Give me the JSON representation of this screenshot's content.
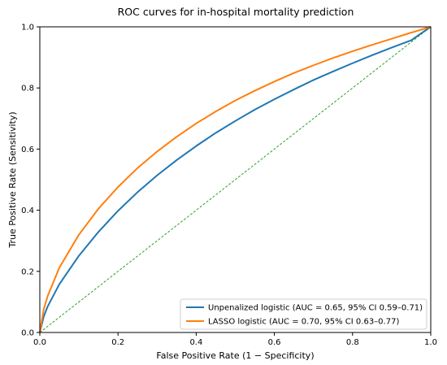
{
  "chart_data": {
    "type": "line",
    "title": "ROC curves for in-hospital mortality prediction",
    "xlabel": "False Positive Rate (1 − Specificity)",
    "ylabel": "True Positive Rate (Sensitivity)",
    "xlim": [
      0,
      1
    ],
    "ylim": [
      0,
      1
    ],
    "xticks": [
      "0.0",
      "0.2",
      "0.4",
      "0.6",
      "0.8",
      "1.0"
    ],
    "yticks": [
      "0.0",
      "0.2",
      "0.4",
      "0.6",
      "0.8",
      "1.0"
    ],
    "grid": false,
    "legend_position": "bottom-right",
    "series": [
      {
        "name": "Unpenalized logistic (AUC = 0.65, 95% CI 0.59–0.71)",
        "color": "#1f77b4",
        "style": "solid",
        "x": [
          0,
          0.01,
          0.02,
          0.05,
          0.1,
          0.15,
          0.2,
          0.25,
          0.3,
          0.35,
          0.4,
          0.45,
          0.5,
          0.55,
          0.6,
          0.65,
          0.7,
          0.75,
          0.8,
          0.85,
          0.9,
          0.95,
          1.0
        ],
        "y": [
          0,
          0.052,
          0.085,
          0.158,
          0.251,
          0.329,
          0.398,
          0.459,
          0.514,
          0.564,
          0.61,
          0.653,
          0.692,
          0.729,
          0.763,
          0.795,
          0.826,
          0.854,
          0.881,
          0.907,
          0.932,
          0.956,
          1.0
        ]
      },
      {
        "name": "LASSO logistic (AUC = 0.70, 95% CI 0.63–0.77)",
        "color": "#ff7f0e",
        "style": "solid",
        "x": [
          0,
          0.01,
          0.02,
          0.05,
          0.1,
          0.15,
          0.2,
          0.25,
          0.3,
          0.35,
          0.4,
          0.45,
          0.5,
          0.55,
          0.6,
          0.65,
          0.7,
          0.75,
          0.8,
          0.85,
          0.9,
          0.95,
          1.0
        ],
        "y": [
          0,
          0.076,
          0.119,
          0.212,
          0.32,
          0.405,
          0.476,
          0.538,
          0.592,
          0.64,
          0.684,
          0.723,
          0.759,
          0.791,
          0.821,
          0.849,
          0.874,
          0.898,
          0.92,
          0.941,
          0.961,
          0.981,
          1.0
        ]
      },
      {
        "name": "",
        "color": "#2ca02c",
        "style": "dashed",
        "x": [
          0,
          1
        ],
        "y": [
          0,
          1
        ]
      }
    ]
  }
}
